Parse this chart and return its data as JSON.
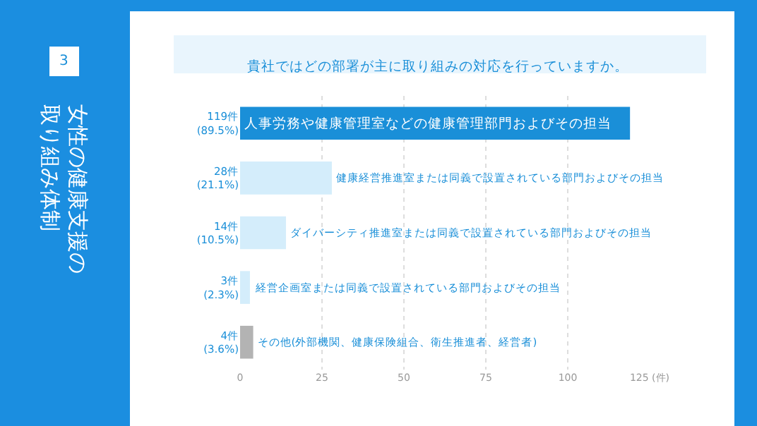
{
  "chart_data": {
    "type": "bar",
    "orientation": "horizontal",
    "title": "女性の健康支援の取り組み体制",
    "subtitle": "貴社ではどの部署が主に取り組みの対応を行っていますか。",
    "annotations": [
      "3"
    ],
    "categories": [
      "人事労務や健康管理室などの健康管理部門およびその担当",
      "健康経営推進室または同義で設置されている部門およびその担当",
      "ダイバーシティ推進室または同義で設置されている部門およびその担当",
      "経営企画室または同義で設置されている部門およびその担当",
      "その他(外部機関、健康保険組合、衛生推進者、経営者)"
    ],
    "values": [
      119,
      28,
      14,
      3,
      4
    ],
    "value_labels": [
      "119件\n(89.5%)",
      "28件\n(21.1%)",
      "14件\n(10.5%)",
      "3件\n(2.3%)",
      "4件\n(3.6%)"
    ],
    "colors": [
      "#1a8fd8",
      "#d4edfb",
      "#d4edfb",
      "#d4edfb",
      "#b3b3b3"
    ],
    "xlim": [
      0,
      125
    ],
    "xticks": [
      0,
      25,
      50,
      75,
      100,
      {
        "value": 125,
        "label": "125 (件)"
      }
    ],
    "grid": "x",
    "legend": false
  }
}
